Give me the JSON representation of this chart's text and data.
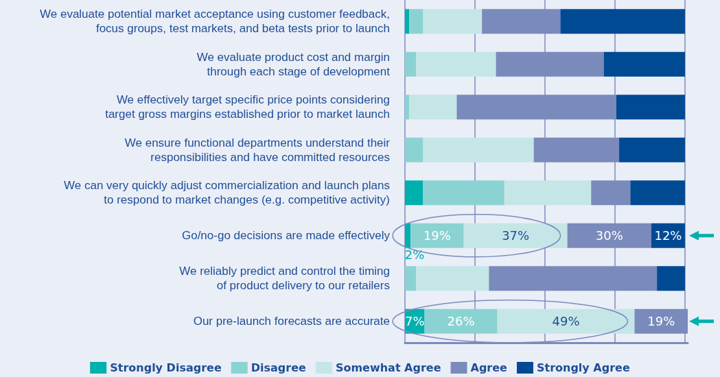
{
  "chart_data": {
    "type": "bar",
    "orientation": "horizontal",
    "stacked": true,
    "categories": [
      "We evaluate potential market acceptance using customer feedback,\nfocus groups, test markets, and beta tests prior to launch",
      "We evaluate product cost and margin\nthrough each stage of development",
      "We effectively target specific price points considering\ntarget gross margins established prior to market launch",
      "We ensure functional departments understand their\nresponsibilities and have committed resources",
      "We can very quickly adjust commercialization and launch plans\nto respond to market changes (e.g. competitive activity)",
      "Go/no-go decisions are made effectively",
      "We reliably predict and control the timing\nof product delivery to our retailers",
      "Our pre-launch forecasts are accurate"
    ],
    "series": [
      {
        "name": "Strongly Disagree",
        "color": "#00b0ad",
        "values": [
          1.5,
          0,
          0,
          0,
          6.5,
          2,
          0,
          7
        ],
        "value_labels": [
          null,
          null,
          null,
          null,
          null,
          "2%",
          null,
          "7%"
        ]
      },
      {
        "name": "Disagree",
        "color": "#8bd3d2",
        "values": [
          5,
          4,
          1.5,
          6.5,
          29,
          19,
          4,
          26
        ],
        "value_labels": [
          null,
          null,
          null,
          null,
          null,
          "19%",
          null,
          "26%"
        ]
      },
      {
        "name": "Somewhat Agree",
        "color": "#c5e6e6",
        "values": [
          21,
          28.5,
          17,
          39.5,
          31,
          37,
          26,
          49
        ],
        "value_labels": [
          null,
          null,
          null,
          null,
          null,
          "37%",
          null,
          "49%"
        ]
      },
      {
        "name": "Agree",
        "color": "#7a8abb",
        "values": [
          28,
          38.5,
          57,
          30.5,
          14,
          30,
          60,
          19
        ],
        "value_labels": [
          null,
          null,
          null,
          null,
          null,
          "30%",
          null,
          "19%"
        ]
      },
      {
        "name": "Strongly Agree",
        "color": "#004a93",
        "values": [
          44.5,
          29,
          24.5,
          23.5,
          19.5,
          12,
          10,
          0
        ],
        "value_labels": [
          null,
          null,
          null,
          null,
          null,
          "12%",
          null,
          null
        ]
      }
    ],
    "xlim": [
      0,
      101
    ],
    "xticks": [
      0,
      25,
      50,
      75,
      100
    ],
    "tick_labels": "y",
    "grid": "x",
    "legend": "bottom"
  }
}
